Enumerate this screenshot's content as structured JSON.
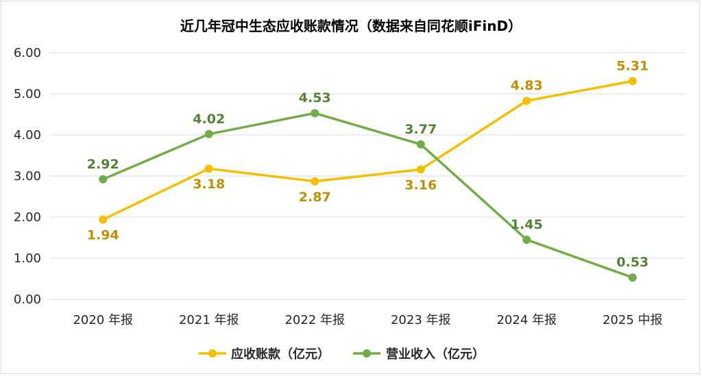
{
  "chart_data": {
    "type": "line",
    "title": "近几年冠中生态应收账款情况（数据来自同花顺iFinD）",
    "categories": [
      "2020 年报",
      "2021 年报",
      "2022 年报",
      "2023 年报",
      "2024 年报",
      "2025 中报"
    ],
    "ylim": [
      0,
      6
    ],
    "yticks": [
      "0.00",
      "1.00",
      "2.00",
      "3.00",
      "4.00",
      "5.00",
      "6.00"
    ],
    "grid": true,
    "legend_position": "bottom",
    "series": [
      {
        "name": "应收账款（亿元）",
        "color": "#f5bf00",
        "label_color": "#bf9000",
        "values": [
          1.94,
          3.18,
          2.87,
          3.16,
          4.83,
          5.31
        ],
        "labels": [
          "1.94",
          "3.18",
          "2.87",
          "3.16",
          "4.83",
          "5.31"
        ],
        "label_positions": [
          "below",
          "below",
          "below",
          "below",
          "above",
          "above"
        ]
      },
      {
        "name": "营业收入（亿元）",
        "color": "#70ad47",
        "label_color": "#548235",
        "values": [
          2.92,
          4.02,
          4.53,
          3.77,
          1.45,
          0.53
        ],
        "labels": [
          "2.92",
          "4.02",
          "4.53",
          "3.77",
          "1.45",
          "0.53"
        ],
        "label_positions": [
          "above",
          "above",
          "above",
          "above",
          "above",
          "above"
        ]
      }
    ]
  }
}
